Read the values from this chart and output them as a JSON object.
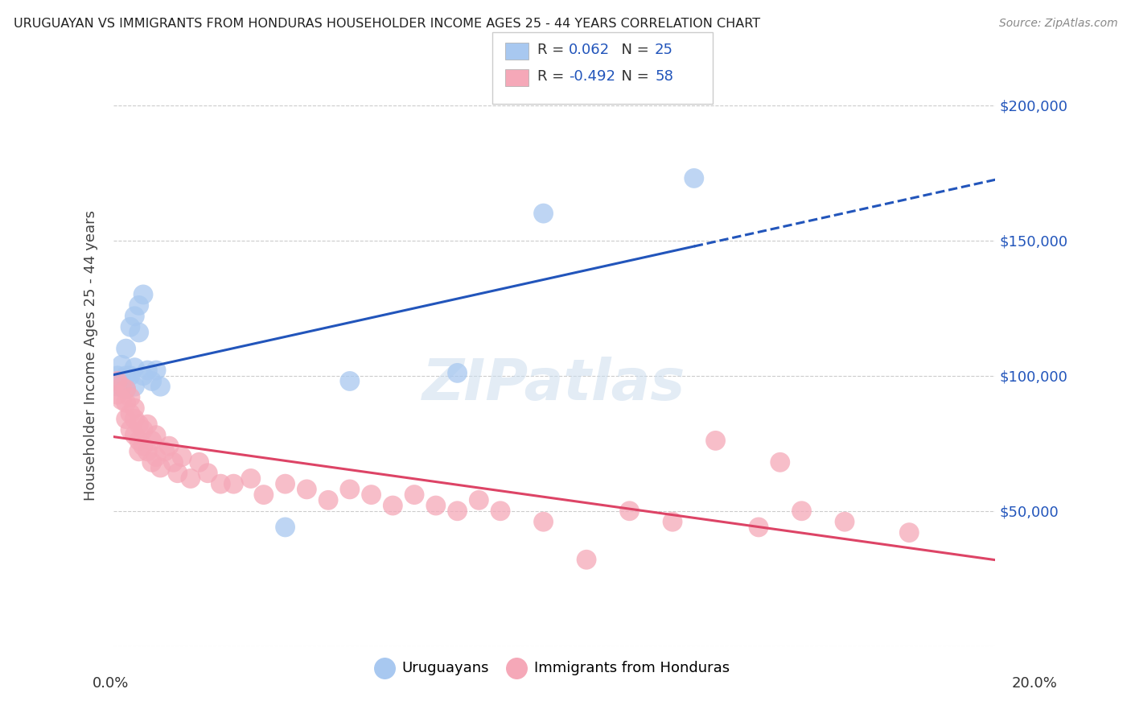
{
  "title": "URUGUAYAN VS IMMIGRANTS FROM HONDURAS HOUSEHOLDER INCOME AGES 25 - 44 YEARS CORRELATION CHART",
  "source": "Source: ZipAtlas.com",
  "ylabel": "Householder Income Ages 25 - 44 years",
  "yticks": [
    0,
    50000,
    100000,
    150000,
    200000
  ],
  "xlim": [
    0.0,
    0.205
  ],
  "ylim": [
    0,
    215000
  ],
  "legend_labels": [
    "Uruguayans",
    "Immigrants from Honduras"
  ],
  "R_blue": 0.062,
  "N_blue": 25,
  "R_pink": -0.492,
  "N_pink": 58,
  "blue_color": "#a8c8f0",
  "pink_color": "#f5a8b8",
  "blue_line_color": "#2255bb",
  "pink_line_color": "#dd4466",
  "grid_color": "#cccccc",
  "background_color": "#ffffff",
  "watermark": "ZIPatlas",
  "blue_x": [
    0.001,
    0.001,
    0.002,
    0.002,
    0.003,
    0.003,
    0.003,
    0.004,
    0.004,
    0.005,
    0.005,
    0.005,
    0.006,
    0.006,
    0.007,
    0.007,
    0.008,
    0.009,
    0.01,
    0.011,
    0.04,
    0.055,
    0.08,
    0.1,
    0.135
  ],
  "blue_y": [
    96000,
    100000,
    98000,
    104000,
    95000,
    100000,
    110000,
    100000,
    118000,
    96000,
    103000,
    122000,
    126000,
    116000,
    100000,
    130000,
    102000,
    98000,
    102000,
    96000,
    44000,
    98000,
    101000,
    160000,
    173000
  ],
  "pink_x": [
    0.001,
    0.001,
    0.002,
    0.002,
    0.003,
    0.003,
    0.003,
    0.004,
    0.004,
    0.004,
    0.005,
    0.005,
    0.005,
    0.006,
    0.006,
    0.006,
    0.007,
    0.007,
    0.008,
    0.008,
    0.009,
    0.009,
    0.01,
    0.01,
    0.011,
    0.012,
    0.013,
    0.014,
    0.015,
    0.016,
    0.018,
    0.02,
    0.022,
    0.025,
    0.028,
    0.032,
    0.035,
    0.04,
    0.045,
    0.05,
    0.055,
    0.06,
    0.065,
    0.07,
    0.075,
    0.08,
    0.085,
    0.09,
    0.1,
    0.11,
    0.12,
    0.13,
    0.14,
    0.15,
    0.155,
    0.16,
    0.17,
    0.185
  ],
  "pink_y": [
    98000,
    93000,
    96000,
    91000,
    95000,
    90000,
    84000,
    92000,
    86000,
    80000,
    88000,
    78000,
    84000,
    82000,
    76000,
    72000,
    80000,
    74000,
    82000,
    72000,
    76000,
    68000,
    78000,
    70000,
    66000,
    72000,
    74000,
    68000,
    64000,
    70000,
    62000,
    68000,
    64000,
    60000,
    60000,
    62000,
    56000,
    60000,
    58000,
    54000,
    58000,
    56000,
    52000,
    56000,
    52000,
    50000,
    54000,
    50000,
    46000,
    32000,
    50000,
    46000,
    76000,
    44000,
    68000,
    50000,
    46000,
    42000
  ]
}
